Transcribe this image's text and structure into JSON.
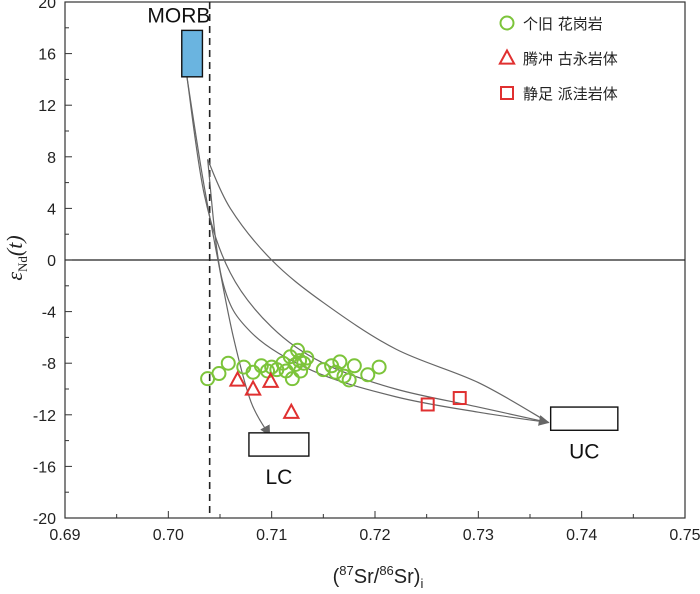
{
  "chart_data": {
    "type": "scatter",
    "x_label": {
      "open": "(",
      "sup1": "87",
      "sr1": "Sr/",
      "sup2": "86",
      "sr2": "Sr)",
      "sub": "i"
    },
    "y_label": {
      "epsilon": "ε",
      "sub": "Nd",
      "rest": "(t)"
    },
    "xlim": [
      0.69,
      0.75
    ],
    "ylim": [
      -20,
      20
    ],
    "x_ticks": [
      0.69,
      0.7,
      0.71,
      0.72,
      0.73,
      0.74,
      0.75
    ],
    "x_tick_labels": [
      "0.69",
      "0.70",
      "0.71",
      "0.72",
      "0.73",
      "0.74",
      "0.75"
    ],
    "y_ticks": [
      -20,
      -16,
      -12,
      -8,
      -4,
      0,
      4,
      8,
      12,
      16,
      20
    ],
    "y_tick_labels": [
      "-20",
      "-16",
      "-12",
      "-8",
      "-4",
      "0",
      "4",
      "8",
      "12",
      "16",
      "20"
    ],
    "reference_lines": {
      "horizontal_y": 0,
      "vertical_dashed_x": 0.704
    },
    "boxes": [
      {
        "name": "MORB",
        "x": [
          0.7013,
          0.7033
        ],
        "y": [
          14.2,
          17.8
        ],
        "fill": "#6ab4e0",
        "label": "MORB"
      },
      {
        "name": "LC",
        "x": [
          0.7078,
          0.7136
        ],
        "y": [
          -15.2,
          -13.4
        ],
        "fill": "#ffffff",
        "label": "LC"
      },
      {
        "name": "UC",
        "x": [
          0.737,
          0.7435
        ],
        "y": [
          -13.2,
          -11.4
        ],
        "fill": "#ffffff",
        "label": "UC"
      }
    ],
    "mixing_curves": [
      {
        "from": "MORB",
        "to": "UC",
        "points": [
          [
            0.7018,
            14.2
          ],
          [
            0.7035,
            5.0
          ],
          [
            0.706,
            -1.0
          ],
          [
            0.71,
            -5.2
          ],
          [
            0.715,
            -8.0
          ],
          [
            0.722,
            -10.0
          ],
          [
            0.73,
            -11.4
          ],
          [
            0.7368,
            -12.6
          ]
        ],
        "arrow": true
      },
      {
        "from": "MORB",
        "to": "LC",
        "points": [
          [
            0.7018,
            14.2
          ],
          [
            0.7033,
            6.5
          ],
          [
            0.7048,
            0.0
          ],
          [
            0.7063,
            -6.0
          ],
          [
            0.708,
            -11.0
          ],
          [
            0.7098,
            -13.6
          ]
        ],
        "arrow": true
      },
      {
        "from": "MORB",
        "to": "UC",
        "points": [
          [
            0.7038,
            7.8
          ],
          [
            0.7052,
            -1.5
          ],
          [
            0.708,
            -5.6
          ],
          [
            0.714,
            -8.6
          ],
          [
            0.722,
            -10.6
          ],
          [
            0.73,
            -11.8
          ],
          [
            0.7368,
            -12.6
          ]
        ],
        "arrow": false
      },
      {
        "from": "MORB",
        "to": "UC",
        "points": [
          [
            0.7038,
            7.8
          ],
          [
            0.706,
            4.0
          ],
          [
            0.71,
            0.0
          ],
          [
            0.715,
            -3.3
          ],
          [
            0.722,
            -6.9
          ],
          [
            0.73,
            -9.5
          ],
          [
            0.7368,
            -12.6
          ]
        ],
        "arrow": false
      }
    ],
    "series": [
      {
        "name": "个旧 花岗岩",
        "marker": "circle",
        "color": "#7cc43a",
        "points": [
          [
            0.7038,
            -9.2
          ],
          [
            0.7049,
            -8.8
          ],
          [
            0.7058,
            -8.0
          ],
          [
            0.7073,
            -8.3
          ],
          [
            0.7082,
            -8.7
          ],
          [
            0.709,
            -8.2
          ],
          [
            0.7096,
            -8.6
          ],
          [
            0.71,
            -8.3
          ],
          [
            0.7105,
            -8.5
          ],
          [
            0.7111,
            -8.0
          ],
          [
            0.7114,
            -8.6
          ],
          [
            0.7118,
            -7.5
          ],
          [
            0.712,
            -9.2
          ],
          [
            0.7123,
            -8.1
          ],
          [
            0.7125,
            -7.0
          ],
          [
            0.7127,
            -7.8
          ],
          [
            0.7128,
            -8.6
          ],
          [
            0.7131,
            -8.0
          ],
          [
            0.7134,
            -7.6
          ],
          [
            0.715,
            -8.5
          ],
          [
            0.7158,
            -8.2
          ],
          [
            0.7162,
            -8.7
          ],
          [
            0.7166,
            -7.9
          ],
          [
            0.717,
            -9.0
          ],
          [
            0.7175,
            -9.3
          ],
          [
            0.718,
            -8.2
          ],
          [
            0.7193,
            -8.9
          ],
          [
            0.7204,
            -8.3
          ]
        ]
      },
      {
        "name": "腾冲 古永岩体",
        "marker": "triangle",
        "color": "#e03030",
        "points": [
          [
            0.7067,
            -9.3
          ],
          [
            0.7082,
            -10.0
          ],
          [
            0.7099,
            -9.4
          ],
          [
            0.7119,
            -11.8
          ]
        ]
      },
      {
        "name": "静足 派洼岩体",
        "marker": "square",
        "color": "#e03030",
        "points": [
          [
            0.7251,
            -11.2
          ],
          [
            0.7282,
            -10.7
          ]
        ]
      }
    ],
    "legend_position": "top-right"
  }
}
